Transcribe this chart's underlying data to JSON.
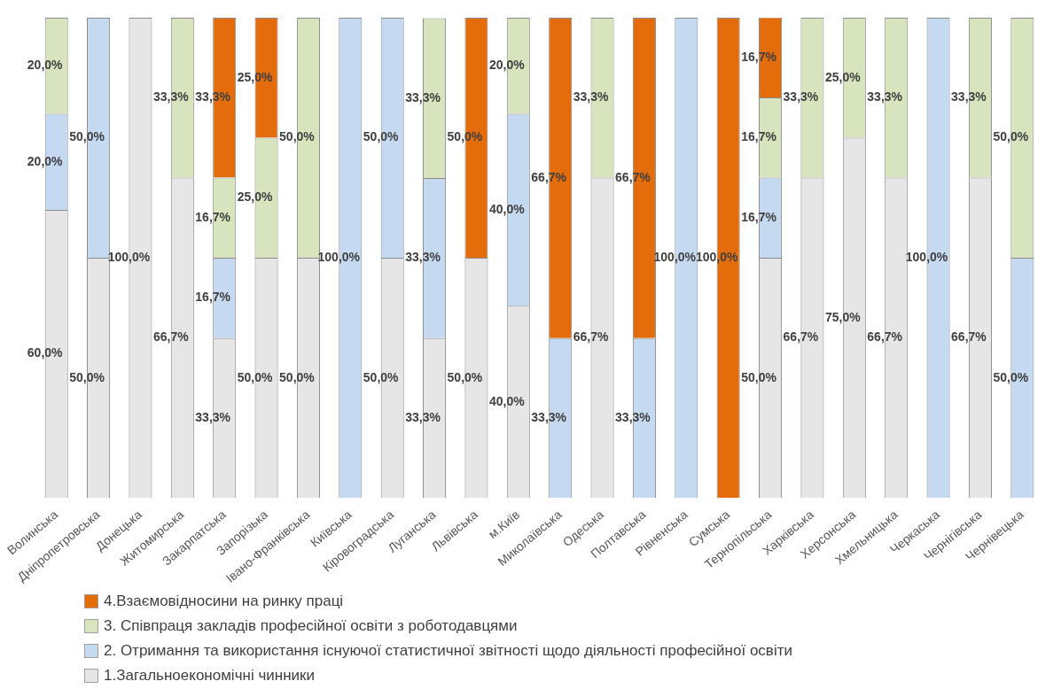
{
  "chart_data": {
    "type": "bar",
    "stacked": true,
    "legend": "bottom",
    "data_labels": false,
    "tick_labels": "x",
    "grid": false,
    "ylim": [
      0,
      100
    ],
    "categories": [
      "Волинська",
      "Дніпропетровська",
      "Донецька",
      "Житомирська",
      "Закарпатська",
      "Запорізька",
      "Івано-Франківська",
      "Київська",
      "Кіровоградська",
      "Луганська",
      "Львівська",
      "м.Київ",
      "Миколаївська",
      "Одеська",
      "Полтавська",
      "Рівненська",
      "Сумська",
      "Тернопільська",
      "Харківська",
      "Херсонська",
      "Хмельницька",
      "Черкаська",
      "Чернігівська",
      "Чернівецька"
    ],
    "series": [
      {
        "name": "1.Загальноекономічні чинники",
        "color": "#e6e6e6",
        "values": [
          60,
          50,
          100,
          66.7,
          33.3,
          50,
          50,
          0,
          50,
          33.3,
          50,
          40,
          0,
          66.7,
          0,
          0,
          0,
          50,
          66.7,
          75,
          66.7,
          0,
          66.7,
          0
        ],
        "value_labels": [
          "60,0%",
          "50,0%",
          "100,0%",
          "66,7%",
          "33,3%",
          "50,0%",
          "50,0%",
          null,
          "50,0%",
          "33,3%",
          "50,0%",
          "40,0%",
          null,
          "66,7%",
          null,
          null,
          null,
          "50,0%",
          "66,7%",
          "75,0%",
          "66,7%",
          null,
          "66,7%",
          null
        ]
      },
      {
        "name": "2. Отримання та використання існуючої статистичної звітності щодо діяльності професійної освіти",
        "color": "#c5d9f1",
        "values": [
          20,
          50,
          0,
          0,
          16.7,
          0,
          0,
          100,
          50,
          33.3,
          0,
          40,
          33.3,
          0,
          33.3,
          100,
          0,
          16.7,
          0,
          0,
          0,
          100,
          0,
          50
        ],
        "value_labels": [
          "20,0%",
          "50,0%",
          null,
          null,
          "16,7%",
          null,
          null,
          "100,0%",
          "50,0%",
          "33,3%",
          null,
          "40,0%",
          "33,3%",
          null,
          "33,3%",
          "100,0%",
          null,
          "16,7%",
          null,
          null,
          null,
          "100,0%",
          null,
          "50,0%"
        ]
      },
      {
        "name": "3. Співпраця закладів професійної освіти з роботодавцями",
        "color": "#d7e4bd",
        "values": [
          20,
          0,
          0,
          33.3,
          16.7,
          25,
          50,
          0,
          0,
          33.3,
          0,
          20,
          0,
          33.3,
          0,
          0,
          0,
          16.7,
          33.3,
          25,
          33.3,
          0,
          33.3,
          50
        ],
        "value_labels": [
          "20,0%",
          null,
          null,
          "33,3%",
          "16,7%",
          "25,0%",
          "50,0%",
          null,
          null,
          "33,3%",
          null,
          "20,0%",
          null,
          "33,3%",
          null,
          null,
          null,
          "16,7%",
          "33,3%",
          "25,0%",
          "33,3%",
          null,
          "33,3%",
          "50,0%"
        ]
      },
      {
        "name": "4.Взаємовідносини на ринку праці",
        "color": "#e46c0a",
        "values": [
          0,
          0,
          0,
          0,
          33.3,
          25,
          0,
          0,
          0,
          0,
          50,
          0,
          66.7,
          0,
          66.7,
          0,
          100,
          16.7,
          0,
          0,
          0,
          0,
          0,
          0
        ],
        "value_labels": [
          null,
          null,
          null,
          null,
          "33,3%",
          "25,0%",
          null,
          null,
          null,
          null,
          "50,0%",
          null,
          "66,7%",
          null,
          "66,7%",
          null,
          "100,0%",
          "16,7%",
          null,
          null,
          null,
          null,
          null,
          null
        ]
      }
    ]
  }
}
